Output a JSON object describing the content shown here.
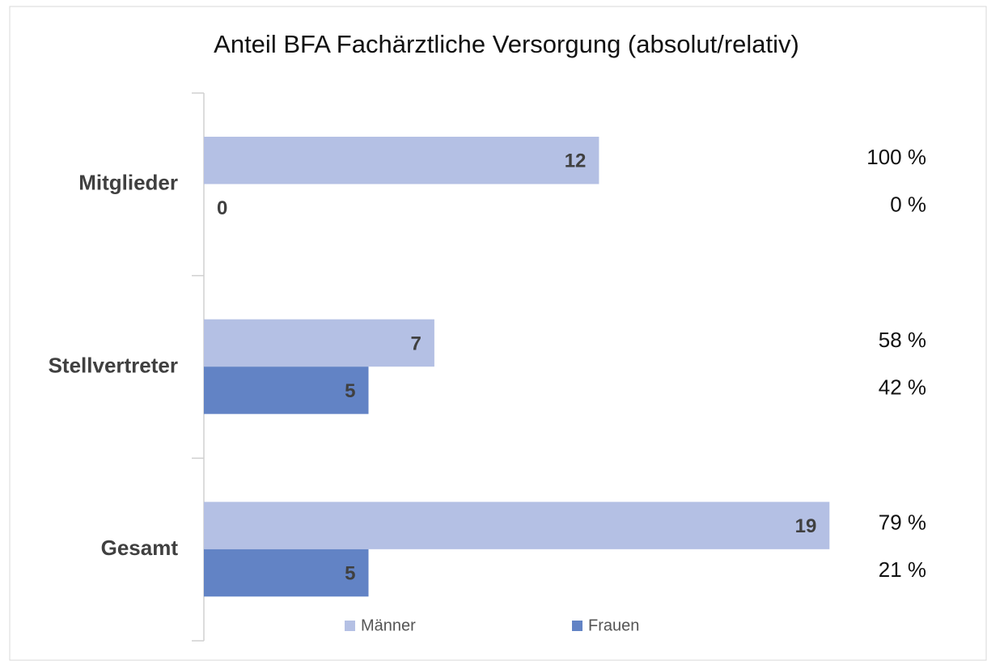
{
  "chart_data": {
    "type": "hbar",
    "title": "Anteil BFA Fachärztliche Versorgung  (absolut/relativ)",
    "categories": [
      "Mitglieder",
      "Stellvertreter",
      "Gesamt"
    ],
    "series": [
      {
        "name": "Männer",
        "color": "#b4c0e4",
        "values": [
          12,
          7,
          19
        ],
        "share_labels": [
          "100 %",
          "58 %",
          "79 %"
        ]
      },
      {
        "name": "Frauen",
        "color": "#6283c5",
        "values": [
          0,
          5,
          5
        ],
        "share_labels": [
          "0 %",
          "42 %",
          "21 %"
        ]
      }
    ],
    "xlim": [
      0,
      20
    ]
  }
}
